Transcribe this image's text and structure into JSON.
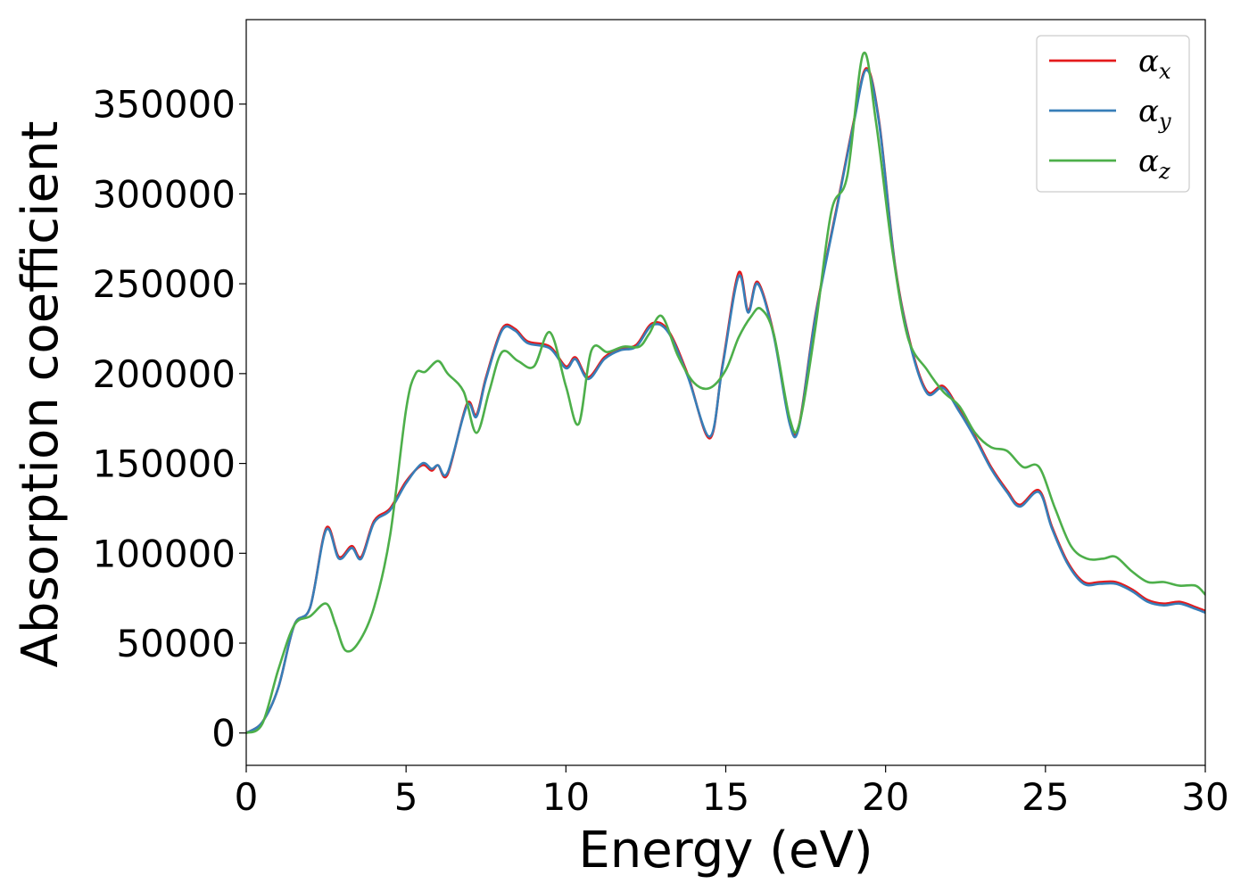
{
  "chart_data": {
    "type": "line",
    "title": "",
    "xlabel": "Energy (eV)",
    "ylabel": "Absorption coefficient",
    "xlim": [
      0,
      30
    ],
    "ylim": [
      -18000,
      397000
    ],
    "xticks": [
      0,
      5,
      10,
      15,
      20,
      25,
      30
    ],
    "yticks": [
      0,
      50000,
      100000,
      150000,
      200000,
      250000,
      300000,
      350000
    ],
    "grid": false,
    "legend": {
      "placement": "top-right"
    },
    "series": [
      {
        "name": "α",
        "sub": "x",
        "color": "#e41a1c",
        "x": [
          0,
          0.5,
          1,
          1.5,
          2,
          2.5,
          2.9,
          3.3,
          3.6,
          4,
          4.5,
          5,
          5.5,
          5.8,
          6,
          6.3,
          6.9,
          7.2,
          7.5,
          8,
          8.4,
          8.8,
          9.5,
          10,
          10.3,
          10.7,
          11.2,
          11.7,
          12.2,
          12.7,
          13.2,
          13.8,
          14.5,
          14.9,
          15.4,
          15.7,
          16,
          16.5,
          17,
          17.3,
          17.8,
          18.5,
          19,
          19.4,
          19.8,
          20.3,
          20.8,
          21.3,
          21.8,
          22.3,
          22.8,
          23.3,
          23.8,
          24.2,
          24.8,
          25.2,
          25.7,
          26.2,
          26.7,
          27.2,
          27.7,
          28.2,
          28.7,
          29.2,
          29.7,
          30
        ],
        "y": [
          0,
          6000,
          25000,
          60000,
          70000,
          114000,
          98000,
          104000,
          98000,
          118000,
          125000,
          140000,
          149000,
          146000,
          149000,
          144000,
          183000,
          177000,
          198000,
          225000,
          225000,
          218000,
          215000,
          204000,
          209000,
          198000,
          209000,
          214000,
          216000,
          228000,
          224000,
          200000,
          164000,
          205000,
          256000,
          235000,
          251000,
          222000,
          173000,
          172000,
          232000,
          295000,
          340000,
          370000,
          340000,
          260000,
          215000,
          190000,
          193000,
          180000,
          165000,
          148000,
          135000,
          127000,
          135000,
          115000,
          95000,
          84000,
          84000,
          84000,
          80000,
          74000,
          72000,
          73000,
          70000,
          68000
        ]
      },
      {
        "name": "α",
        "sub": "y",
        "color": "#377eb8",
        "x": [
          0,
          0.5,
          1,
          1.5,
          2,
          2.5,
          2.9,
          3.3,
          3.6,
          4,
          4.5,
          5,
          5.5,
          5.8,
          6,
          6.3,
          6.9,
          7.2,
          7.5,
          8,
          8.4,
          8.8,
          9.5,
          10,
          10.3,
          10.7,
          11.2,
          11.7,
          12.2,
          12.7,
          13.2,
          13.8,
          14.5,
          14.9,
          15.4,
          15.7,
          16,
          16.5,
          17,
          17.3,
          17.8,
          18.5,
          19,
          19.4,
          19.8,
          20.3,
          20.8,
          21.3,
          21.8,
          22.3,
          22.8,
          23.3,
          23.8,
          24.2,
          24.8,
          25.2,
          25.7,
          26.2,
          26.7,
          27.2,
          27.7,
          28.2,
          28.7,
          29.2,
          29.7,
          30
        ],
        "y": [
          0,
          6000,
          25000,
          60000,
          70000,
          113000,
          97000,
          103000,
          97000,
          117000,
          124000,
          139000,
          150000,
          147000,
          149000,
          145000,
          182000,
          176000,
          197000,
          224000,
          224000,
          217000,
          214000,
          203000,
          208000,
          197000,
          208000,
          213000,
          215000,
          227000,
          223000,
          199000,
          165000,
          204000,
          254000,
          234000,
          250000,
          221000,
          172000,
          171000,
          231000,
          294000,
          339000,
          369000,
          339000,
          259000,
          214000,
          189000,
          192000,
          179000,
          164000,
          147000,
          134000,
          126000,
          134000,
          114000,
          94000,
          83000,
          83000,
          83000,
          79000,
          73000,
          71000,
          72000,
          69000,
          67000
        ]
      },
      {
        "name": "α",
        "sub": "z",
        "color": "#4daf4a",
        "x": [
          0,
          0.5,
          1,
          1.5,
          2,
          2.5,
          2.8,
          3.1,
          3.5,
          4,
          4.5,
          5,
          5.3,
          5.6,
          6,
          6.3,
          6.8,
          7.2,
          7.6,
          8,
          8.5,
          9,
          9.5,
          10,
          10.4,
          10.8,
          11.3,
          11.8,
          12.3,
          12.6,
          13,
          13.5,
          14,
          14.5,
          15,
          15.4,
          15.8,
          16.1,
          16.5,
          17,
          17.3,
          17.8,
          18.3,
          18.8,
          19.3,
          19.7,
          20.2,
          20.7,
          21.3,
          21.8,
          22.3,
          22.8,
          23.3,
          23.8,
          24.3,
          24.8,
          25.3,
          25.8,
          26.3,
          26.8,
          27.2,
          27.7,
          28.2,
          28.7,
          29.2,
          29.7,
          30
        ],
        "y": [
          0,
          5000,
          35000,
          60000,
          65000,
          72000,
          60000,
          46000,
          50000,
          70000,
          110000,
          180000,
          200000,
          201000,
          207000,
          200000,
          190000,
          167000,
          190000,
          212000,
          207000,
          204000,
          223000,
          193000,
          172000,
          213000,
          212000,
          215000,
          215000,
          222000,
          232000,
          210000,
          195000,
          192000,
          202000,
          220000,
          232000,
          236000,
          222000,
          175000,
          172000,
          225000,
          290000,
          310000,
          378000,
          340000,
          270000,
          220000,
          202000,
          190000,
          182000,
          167000,
          159000,
          157000,
          148000,
          148000,
          125000,
          104000,
          97000,
          97000,
          98000,
          90000,
          84000,
          84000,
          82000,
          82000,
          77000
        ]
      }
    ]
  }
}
